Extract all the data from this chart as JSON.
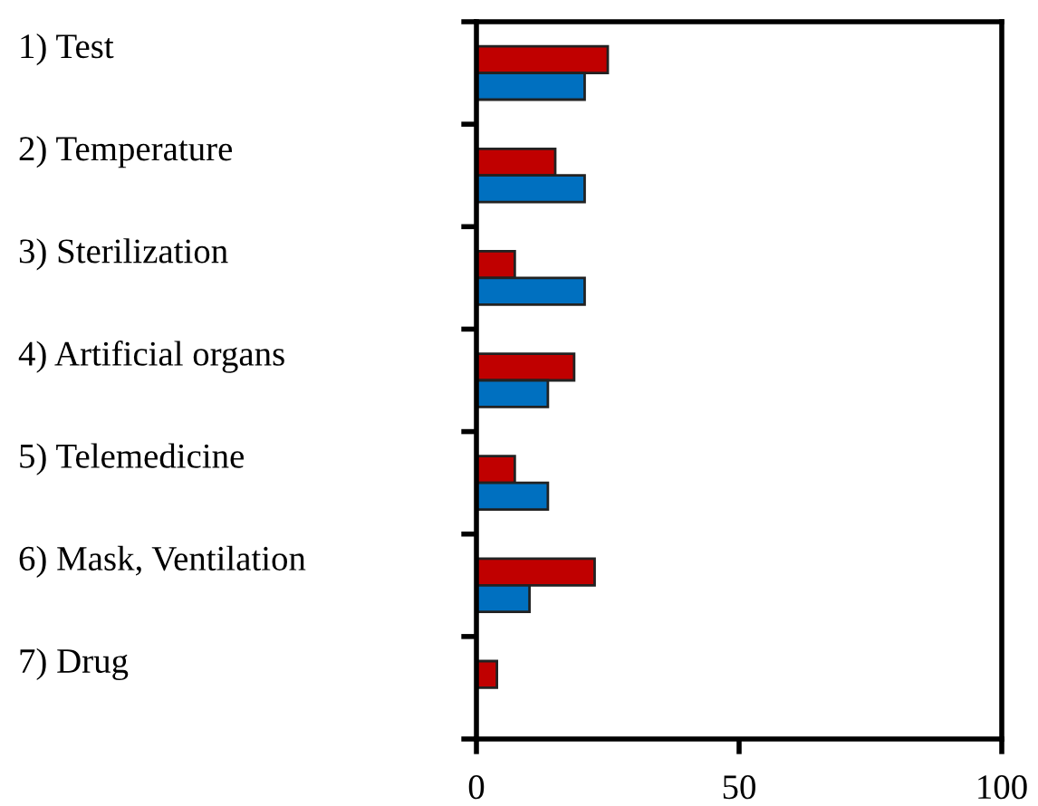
{
  "chart_data": {
    "type": "bar",
    "orientation": "horizontal",
    "categories": [
      "1) Test",
      "2) Temperature",
      "3) Sterilization",
      "4) Artificial organs",
      "5) Telemedicine",
      "6) Mask, Ventilation",
      "7) Drug"
    ],
    "series": [
      {
        "color": "#c00000",
        "values": [
          25,
          15,
          7.3,
          18.6,
          7.3,
          22.5,
          3.9
        ]
      },
      {
        "color": "#0070c0",
        "values": [
          20.6,
          20.6,
          20.6,
          13.6,
          13.6,
          10.1,
          null
        ]
      }
    ],
    "xlim": [
      0,
      100
    ],
    "xticks": [
      0,
      50,
      100
    ],
    "grid": false,
    "legend": false
  }
}
